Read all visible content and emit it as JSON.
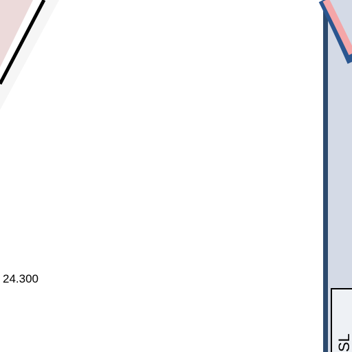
{
  "labels": {
    "price": "24.300",
    "tag": "SL"
  }
}
